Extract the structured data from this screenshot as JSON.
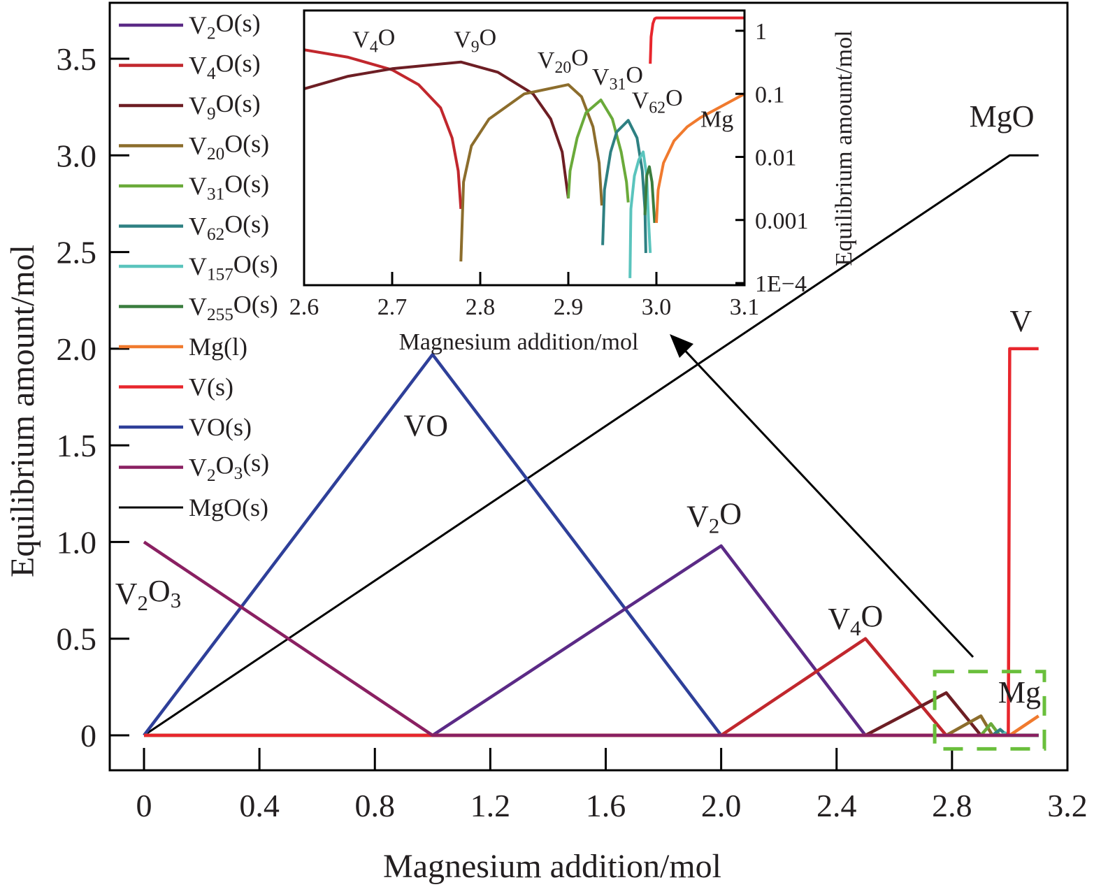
{
  "chart_data": [
    {
      "id": "main",
      "type": "line",
      "title": "",
      "xlabel": "Magnesium addition/mol",
      "ylabel": "Equilibrium amount/mol",
      "xlim": [
        -0.12,
        3.2
      ],
      "ylim": [
        -0.18,
        3.78
      ],
      "xticks": [
        0,
        0.4,
        0.8,
        1.2,
        1.6,
        2.0,
        2.4,
        2.8,
        3.2
      ],
      "xtick_labels": [
        "0",
        "0.4",
        "0.8",
        "1.2",
        "1.6",
        "2.0",
        "2.4",
        "2.8",
        "3.2"
      ],
      "yticks": [
        0,
        0.5,
        1.0,
        1.5,
        2.0,
        2.5,
        3.0,
        3.5
      ],
      "ytick_labels": [
        "0",
        "0.5",
        "1.0",
        "1.5",
        "2.0",
        "2.5",
        "3.0",
        "3.5"
      ],
      "grid": false,
      "legend_position": "top-left",
      "series": [
        {
          "name": "V2O(s)",
          "label_base": "V",
          "label_sub": "2",
          "label_rest": "O(s)",
          "color": "#5b2a86",
          "x": [
            0,
            1.0,
            2.0,
            2.5,
            3.1
          ],
          "y": [
            0,
            0,
            0.98,
            0,
            0
          ]
        },
        {
          "name": "V4O(s)",
          "label_base": "V",
          "label_sub": "4",
          "label_rest": "O(s)",
          "color": "#c1272d",
          "x": [
            0,
            2.0,
            2.5,
            2.78,
            3.1
          ],
          "y": [
            0,
            0,
            0.5,
            0,
            0
          ]
        },
        {
          "name": "V9O(s)",
          "label_base": "V",
          "label_sub": "9",
          "label_rest": "O(s)",
          "color": "#6d1e24",
          "x": [
            0,
            2.5,
            2.78,
            2.9,
            3.1
          ],
          "y": [
            0,
            0,
            0.22,
            0,
            0
          ]
        },
        {
          "name": "V20O(s)",
          "label_base": "V",
          "label_sub": "20",
          "label_rest": "O(s)",
          "color": "#8c6d2c",
          "x": [
            0,
            2.78,
            2.9,
            2.94,
            3.1
          ],
          "y": [
            0,
            0,
            0.1,
            0,
            0
          ]
        },
        {
          "name": "V31O(s)",
          "label_base": "V",
          "label_sub": "31",
          "label_rest": "O(s)",
          "color": "#6aaa3a",
          "x": [
            0,
            2.9,
            2.935,
            2.965,
            3.1
          ],
          "y": [
            0,
            0,
            0.06,
            0,
            0
          ]
        },
        {
          "name": "V62O(s)",
          "label_base": "V",
          "label_sub": "62",
          "label_rest": "O(s)",
          "color": "#2e8082",
          "x": [
            0,
            2.94,
            2.967,
            2.99,
            3.1
          ],
          "y": [
            0,
            0,
            0.03,
            0,
            0
          ]
        },
        {
          "name": "V157O(s)",
          "label_base": "V",
          "label_sub": "157",
          "label_rest": "O(s)",
          "color": "#5ac4bd",
          "x": [
            0,
            2.97,
            2.985,
            2.995,
            3.1
          ],
          "y": [
            0,
            0,
            0.012,
            0,
            0
          ]
        },
        {
          "name": "V255O(s)",
          "label_base": "V",
          "label_sub": "255",
          "label_rest": "O(s)",
          "color": "#3a7d3e",
          "x": [
            0,
            2.988,
            2.992,
            2.998,
            3.1
          ],
          "y": [
            0,
            0,
            0.005,
            0,
            0
          ]
        },
        {
          "name": "Mg(l)",
          "label_base": "Mg(l)",
          "label_sub": "",
          "label_rest": "",
          "color": "#f07a2e",
          "x": [
            0,
            3.0,
            3.1
          ],
          "y": [
            0,
            0,
            0.1
          ]
        },
        {
          "name": "V(s)",
          "label_base": "V(s)",
          "label_sub": "",
          "label_rest": "",
          "color": "#e8262d",
          "x": [
            0,
            2.995,
            3.0,
            3.1
          ],
          "y": [
            0,
            0,
            2.0,
            2.0
          ]
        },
        {
          "name": "VO(s)",
          "label_base": "VO(s)",
          "label_sub": "",
          "label_rest": "",
          "color": "#2e3f99",
          "x": [
            0,
            1.0,
            2.0,
            3.1
          ],
          "y": [
            0,
            1.97,
            0,
            0
          ]
        },
        {
          "name": "V2O3(s)",
          "label_base": "V",
          "label_sub": "2",
          "label_rest": "O",
          "label_sub2": "3",
          "label_rest2": "(s)",
          "color": "#8a2062",
          "x": [
            0,
            1.0,
            3.1
          ],
          "y": [
            1.0,
            0,
            0
          ]
        },
        {
          "name": "MgO(s)",
          "label_base": "MgO(s)",
          "label_sub": "",
          "label_rest": "",
          "color": "#000000",
          "x": [
            0,
            3.0,
            3.1
          ],
          "y": [
            0,
            3.0,
            3.0
          ]
        }
      ],
      "annotations": [
        {
          "id": "v2o3",
          "base": "V",
          "sub": "2",
          "rest": "O",
          "sub2": "3",
          "x": -0.1,
          "y": 0.68
        },
        {
          "id": "vo",
          "base": "VO",
          "sub": "",
          "rest": "",
          "x": 0.9,
          "y": 1.55
        },
        {
          "id": "v2o",
          "base": "V",
          "sub": "2",
          "rest": "O",
          "x": 1.88,
          "y": 1.08
        },
        {
          "id": "v4o",
          "base": "V",
          "sub": "4",
          "rest": "O",
          "x": 2.37,
          "y": 0.55
        },
        {
          "id": "mg",
          "base": "Mg",
          "sub": "",
          "rest": "",
          "x": 2.96,
          "y": 0.17
        },
        {
          "id": "mgo",
          "base": "MgO",
          "sub": "",
          "rest": "",
          "x": 2.86,
          "y": 3.15
        },
        {
          "id": "v",
          "base": "V",
          "sub": "",
          "rest": "",
          "x": 3.0,
          "y": 2.09
        }
      ],
      "highlight_box": {
        "x_range": [
          2.74,
          3.12
        ],
        "y_range": [
          -0.07,
          0.33
        ],
        "color": "#6abf3c"
      },
      "arrow": {
        "from": [
          2.86,
          0.4
        ],
        "to": [
          3.0,
          2.0
        ]
      }
    },
    {
      "id": "inset",
      "type": "line",
      "xlabel": "Magnesium addition/mol",
      "ylabel": "Equilibrium amount/mol",
      "y_scale": "log",
      "xlim": [
        2.6,
        3.1
      ],
      "ylim": [
        0.0001,
        1.5
      ],
      "xticks": [
        2.6,
        2.7,
        2.8,
        2.9,
        3.0,
        3.1
      ],
      "xtick_labels": [
        "2.6",
        "2.7",
        "2.8",
        "2.9",
        "3.0",
        "3.1"
      ],
      "yticks": [
        1,
        0.1,
        0.01,
        0.001,
        0.0001
      ],
      "ytick_labels": [
        "1",
        "0.1",
        "0.01",
        "0.001",
        "1E−4"
      ],
      "y_axis_side": "right",
      "series": [
        {
          "name": "V4O(s)",
          "color": "#c1272d",
          "x": [
            2.6,
            2.65,
            2.7,
            2.73,
            2.755,
            2.768,
            2.775,
            2.778
          ],
          "y": [
            0.5,
            0.38,
            0.24,
            0.14,
            0.06,
            0.02,
            0.006,
            0.0015
          ]
        },
        {
          "name": "V9O(s)",
          "color": "#6d1e24",
          "x": [
            2.6,
            2.65,
            2.7,
            2.778,
            2.82,
            2.86,
            2.88,
            2.893,
            2.9
          ],
          "y": [
            0.12,
            0.19,
            0.25,
            0.32,
            0.22,
            0.1,
            0.04,
            0.012,
            0.0022
          ]
        },
        {
          "name": "V20O(s)",
          "color": "#8c6d2c",
          "x": [
            2.778,
            2.781,
            2.79,
            2.81,
            2.85,
            2.9,
            2.915,
            2.928,
            2.935,
            2.938
          ],
          "y": [
            0.00022,
            0.004,
            0.015,
            0.04,
            0.1,
            0.14,
            0.09,
            0.03,
            0.008,
            0.0017
          ]
        },
        {
          "name": "V31O(s)",
          "color": "#6aaa3a",
          "x": [
            2.9,
            2.902,
            2.91,
            2.92,
            2.937,
            2.95,
            2.96,
            2.966,
            2.968
          ],
          "y": [
            0.0022,
            0.006,
            0.02,
            0.05,
            0.08,
            0.04,
            0.012,
            0.004,
            0.0019
          ]
        },
        {
          "name": "V62O(s)",
          "color": "#2e8082",
          "x": [
            2.939,
            2.941,
            2.948,
            2.955,
            2.968,
            2.978,
            2.984,
            2.987,
            2.988
          ],
          "y": [
            0.0004,
            0.003,
            0.012,
            0.025,
            0.038,
            0.02,
            0.006,
            0.0015,
            0.0003
          ]
        },
        {
          "name": "V157O(s)",
          "color": "#5ac4bd",
          "x": [
            2.97,
            2.971,
            2.975,
            2.98,
            2.985,
            2.989,
            2.991,
            2.993
          ],
          "y": [
            0.00012,
            0.0015,
            0.005,
            0.009,
            0.012,
            0.005,
            0.001,
            0.0003
          ]
        },
        {
          "name": "V255O(s)",
          "color": "#3a7d3e",
          "x": [
            2.987,
            2.989,
            2.992,
            2.995,
            2.997,
            2.998
          ],
          "y": [
            0.0012,
            0.005,
            0.007,
            0.004,
            0.0015,
            0.0009
          ]
        },
        {
          "name": "Mg(l)",
          "color": "#f07a2e",
          "x": [
            3.0,
            3.002,
            3.008,
            3.02,
            3.035,
            3.05,
            3.1
          ],
          "y": [
            0.0009,
            0.003,
            0.008,
            0.018,
            0.03,
            0.042,
            0.1
          ]
        },
        {
          "name": "V(s)",
          "color": "#e8262d",
          "x": [
            2.993,
            2.994,
            2.996,
            2.998,
            3.0,
            3.1
          ],
          "y": [
            0.3,
            0.8,
            1.3,
            1.55,
            1.6,
            1.6
          ]
        }
      ],
      "annotations": [
        {
          "id": "in-v4o",
          "base": "V",
          "sub": "4",
          "rest": "O",
          "x": 2.655,
          "y": 0.55
        },
        {
          "id": "in-v9o",
          "base": "V",
          "sub": "9",
          "rest": "O",
          "x": 2.77,
          "y": 0.55
        },
        {
          "id": "in-v20o",
          "base": "V",
          "sub": "20",
          "rest": "O",
          "x": 2.865,
          "y": 0.26
        },
        {
          "id": "in-v31o",
          "base": "V",
          "sub": "31",
          "rest": "O",
          "x": 2.927,
          "y": 0.14
        },
        {
          "id": "in-v62o",
          "base": "V",
          "sub": "62",
          "rest": "O",
          "x": 2.972,
          "y": 0.06
        },
        {
          "id": "in-mg",
          "base": "Mg",
          "sub": "",
          "rest": "",
          "x": 3.05,
          "y": 0.03
        }
      ]
    }
  ]
}
